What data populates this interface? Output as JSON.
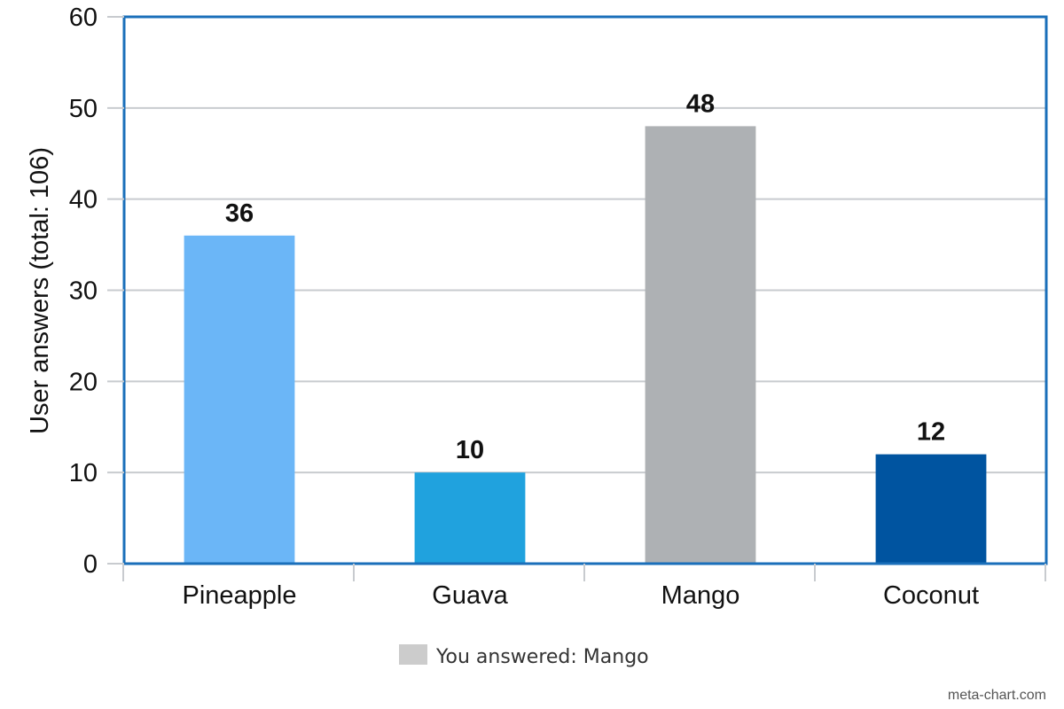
{
  "chart_data": {
    "type": "bar",
    "categories": [
      "Pineapple",
      "Guava",
      "Mango",
      "Coconut"
    ],
    "values": [
      36,
      10,
      48,
      12
    ],
    "bar_colors": [
      "#6bb6f7",
      "#20a2de",
      "#aeb1b4",
      "#0054a0"
    ],
    "title": "",
    "xlabel": "",
    "ylabel": "User answers (total: 106)",
    "ylim": [
      0,
      60
    ],
    "yticks": [
      0,
      10,
      20,
      30,
      40,
      50,
      60
    ],
    "grid": true,
    "data_labels": true,
    "legend": {
      "placement": "bottom",
      "entries": [
        {
          "label": "You answered: Mango",
          "color": "#cccccc"
        }
      ]
    }
  },
  "colors": {
    "frame": "#1a6fba",
    "grid": "#c8cbcf"
  },
  "credit": "meta-chart.com"
}
